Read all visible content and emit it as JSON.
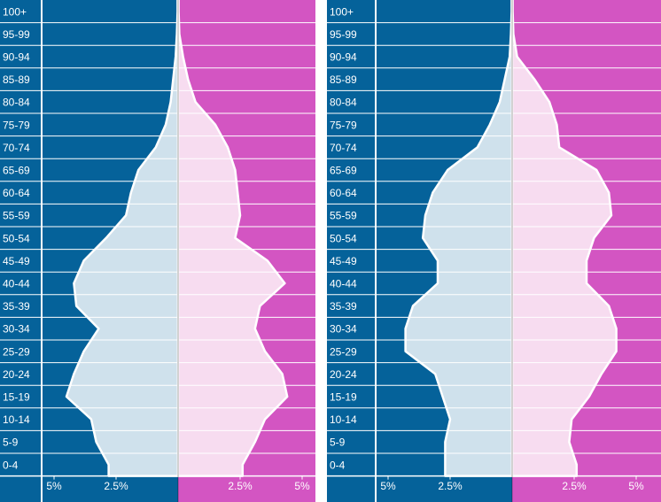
{
  "chart_data": [
    {
      "type": "population-pyramid",
      "title": "",
      "xlabel": "",
      "ylabel": "",
      "age_groups": [
        "0-4",
        "5-9",
        "10-14",
        "15-19",
        "20-24",
        "25-29",
        "30-34",
        "35-39",
        "40-44",
        "45-49",
        "50-54",
        "55-59",
        "60-64",
        "65-69",
        "70-74",
        "75-79",
        "80-84",
        "85-89",
        "90-94",
        "95-99",
        "100+"
      ],
      "series": [
        {
          "name": "",
          "side": "left",
          "values": [
            2.8,
            3.3,
            3.5,
            4.5,
            4.2,
            3.8,
            3.2,
            4.1,
            4.2,
            3.8,
            2.9,
            2.1,
            1.9,
            1.6,
            0.9,
            0.5,
            0.3,
            0.2,
            0.1,
            0.05,
            0.02
          ]
        },
        {
          "name": "",
          "side": "right",
          "values": [
            2.6,
            3.1,
            3.5,
            4.4,
            4.2,
            3.5,
            3.1,
            3.3,
            4.3,
            3.6,
            2.3,
            2.5,
            2.4,
            2.3,
            2.0,
            1.5,
            0.7,
            0.4,
            0.2,
            0.05,
            0.02
          ]
        }
      ],
      "x_ticks": [
        "5%",
        "2.5%",
        "2.5%",
        "5%"
      ],
      "xlim": [
        -5.5,
        5.5
      ],
      "colors": {
        "left_bg": "#05629a",
        "right_bg": "#d355c2",
        "left_fill": "#cfe1ec",
        "right_fill": "#f7dcf0",
        "outline": "#ffffff"
      }
    },
    {
      "type": "population-pyramid",
      "title": "",
      "xlabel": "",
      "ylabel": "",
      "age_groups": [
        "0-4",
        "5-9",
        "10-14",
        "15-19",
        "20-24",
        "25-29",
        "30-34",
        "35-39",
        "40-44",
        "45-49",
        "50-54",
        "55-59",
        "60-64",
        "65-69",
        "70-74",
        "75-79",
        "80-84",
        "85-89",
        "90-94",
        "95-99",
        "100+"
      ],
      "series": [
        {
          "name": "",
          "side": "left",
          "values": [
            2.7,
            2.7,
            2.5,
            2.8,
            3.1,
            4.3,
            4.3,
            4.0,
            3.0,
            3.0,
            3.6,
            3.5,
            3.2,
            2.6,
            1.4,
            0.9,
            0.5,
            0.3,
            0.1,
            0.05,
            0.02
          ]
        },
        {
          "name": "",
          "side": "right",
          "values": [
            2.6,
            2.3,
            2.4,
            3.1,
            3.6,
            4.2,
            4.2,
            3.9,
            3.0,
            3.0,
            3.3,
            4.0,
            3.9,
            3.4,
            1.9,
            1.8,
            1.5,
            0.9,
            0.2,
            0.05,
            0.02
          ]
        }
      ],
      "x_ticks": [
        "5%",
        "2.5%",
        "2.5%",
        "5%"
      ],
      "xlim": [
        -5.5,
        5.5
      ],
      "colors": {
        "left_bg": "#05629a",
        "right_bg": "#d355c2",
        "left_fill": "#cfe1ec",
        "right_fill": "#f7dcf0",
        "outline": "#ffffff"
      }
    }
  ]
}
